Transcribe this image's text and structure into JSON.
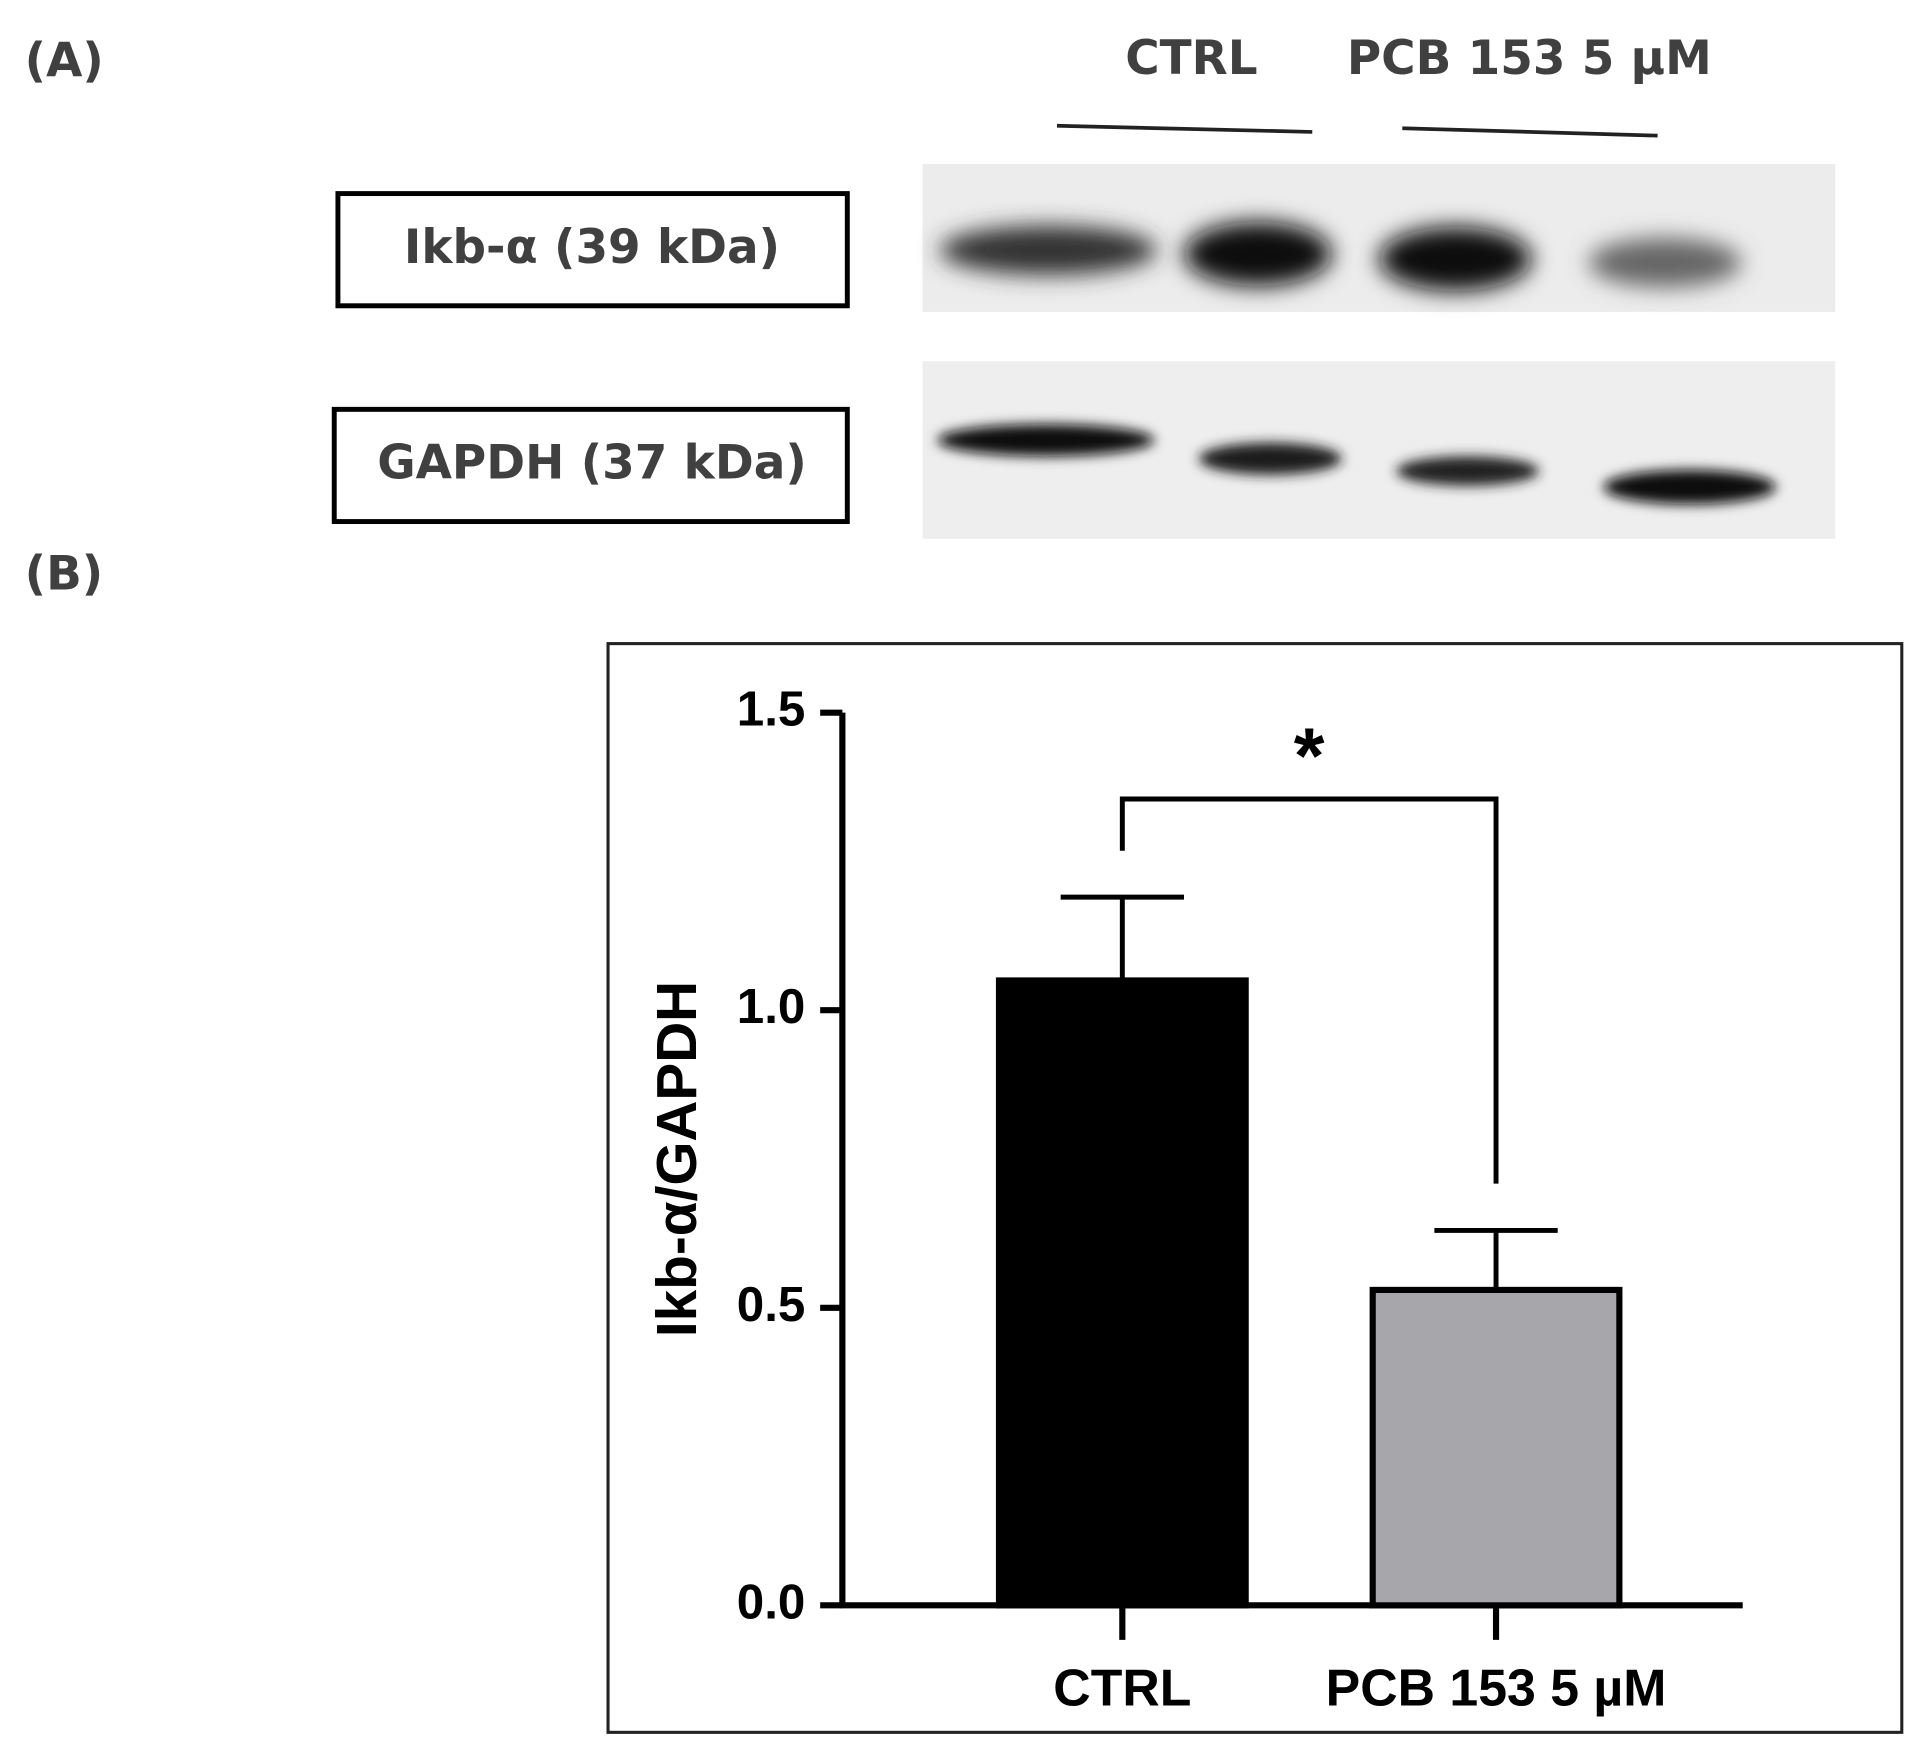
{
  "panel_labels": [
    "(A)",
    "(B)"
  ],
  "panel_a": {
    "groups": [
      "CTRL",
      "PCB 153 5 µM"
    ],
    "blots": [
      "Ikb-α (39 kDa)",
      "GAPDH (37 kDa)"
    ]
  },
  "chart_data": {
    "type": "bar",
    "ylabel": "Ikb-α/GAPDH",
    "categories": [
      "CTRL",
      "PCB 153 5 µM"
    ],
    "values": [
      1.05,
      0.53
    ],
    "errors": [
      0.14,
      0.1
    ],
    "colors": [
      "#000000",
      "#a7a7ab"
    ],
    "ylim": [
      0,
      1.5
    ],
    "yticks": [
      {
        "value": 0,
        "label": "0.0"
      },
      0.5,
      {
        "value": 1,
        "label": "1.0"
      },
      1.5
    ],
    "annotations": [
      "*"
    ]
  }
}
